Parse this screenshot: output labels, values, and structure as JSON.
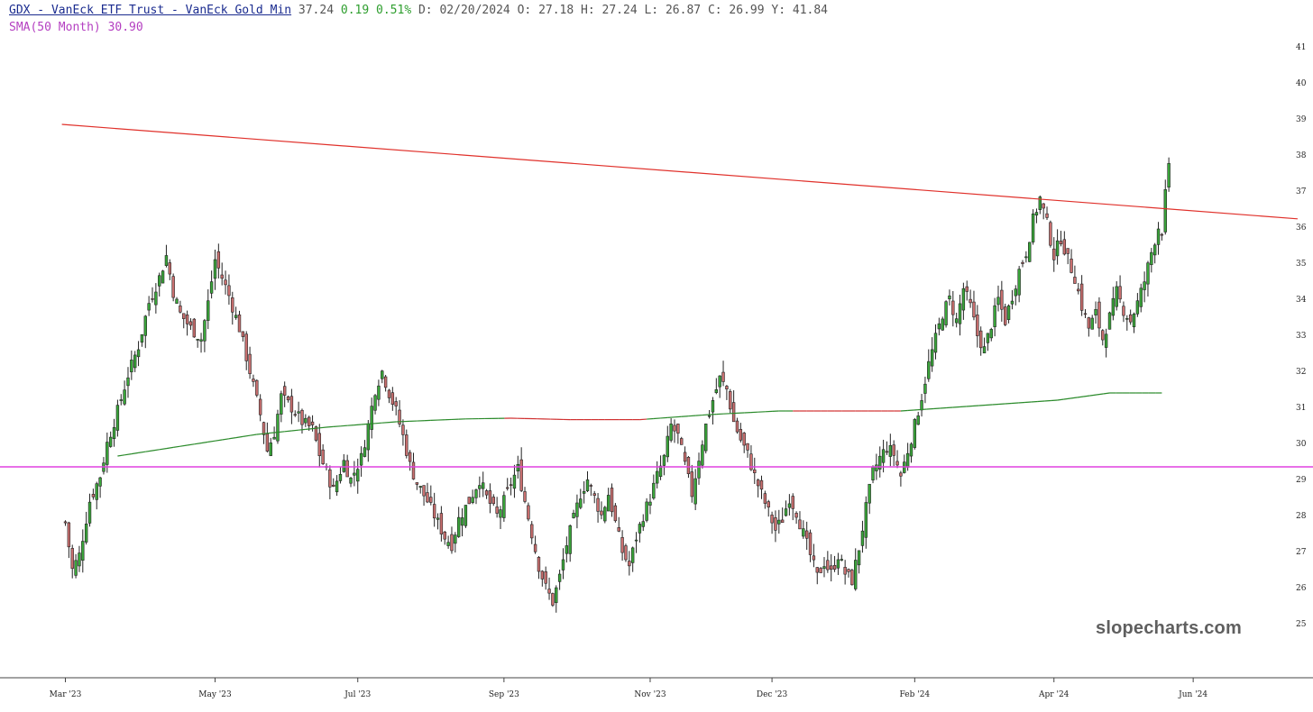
{
  "header": {
    "symbol_text": "GDX - VanEck ETF Trust - VanEck Gold Min",
    "last": "37.24",
    "change": "0.19",
    "change_pct": "0.51%",
    "date_label": "D:",
    "date": "02/20/2024",
    "open_label": "O:",
    "open": "27.18",
    "high_label": "H:",
    "high": "27.24",
    "low_label": "L:",
    "low": "26.87",
    "close_label": "C:",
    "close": "26.99",
    "y_label": "Y:",
    "y": "41.84"
  },
  "indicator": {
    "sma_label": "SMA(50 Month) 30.90"
  },
  "watermark": "slopecharts.com",
  "colors": {
    "up": "#3aa63a",
    "down": "#c96f6f",
    "trendline": "#e0302a",
    "sma_green": "#2a8a2a",
    "sma_red": "#d03030",
    "horizontal": "#e040e0",
    "symbol": "#1a2b8f",
    "change": "#2e9e2e",
    "sma_text": "#b43fc1"
  },
  "chart_data": {
    "type": "candlestick",
    "ylim": [
      24.3,
      41.3
    ],
    "y_ticks": [
      25,
      26,
      27,
      28,
      29,
      30,
      31,
      32,
      33,
      34,
      35,
      36,
      37,
      38,
      39,
      40,
      41
    ],
    "x_ticks": [
      {
        "label": "Mar '23",
        "index": 0
      },
      {
        "label": "May '23",
        "index": 43
      },
      {
        "label": "Jul '23",
        "index": 84
      },
      {
        "label": "Sep '23",
        "index": 126
      },
      {
        "label": "Nov '23",
        "index": 168
      },
      {
        "label": "Dec '23",
        "index": 203
      },
      {
        "label": "Feb '24",
        "index": 244
      },
      {
        "label": "Apr '24",
        "index": 284
      },
      {
        "label": "Jun '24",
        "index": 324
      }
    ],
    "close_path": [
      [
        0,
        27.8
      ],
      [
        2,
        26.5
      ],
      [
        4,
        26.9
      ],
      [
        7,
        28.4
      ],
      [
        10,
        29.1
      ],
      [
        12,
        30.0
      ],
      [
        15,
        30.9
      ],
      [
        18,
        31.9
      ],
      [
        21,
        32.7
      ],
      [
        24,
        33.9
      ],
      [
        27,
        34.6
      ],
      [
        29,
        35.2
      ],
      [
        31,
        34.2
      ],
      [
        33,
        33.6
      ],
      [
        36,
        33.2
      ],
      [
        39,
        32.9
      ],
      [
        41,
        33.9
      ],
      [
        43,
        35.1
      ],
      [
        45,
        34.6
      ],
      [
        47,
        34.1
      ],
      [
        50,
        33.2
      ],
      [
        52,
        32.4
      ],
      [
        54,
        31.6
      ],
      [
        56,
        30.8
      ],
      [
        58,
        29.8
      ],
      [
        60,
        30.3
      ],
      [
        62,
        31.3
      ],
      [
        65,
        31.0
      ],
      [
        68,
        30.6
      ],
      [
        71,
        30.4
      ],
      [
        73,
        29.7
      ],
      [
        75,
        29.2
      ],
      [
        77,
        28.7
      ],
      [
        80,
        29.5
      ],
      [
        82,
        29.0
      ],
      [
        85,
        29.6
      ],
      [
        87,
        30.5
      ],
      [
        89,
        31.5
      ],
      [
        91,
        32.0
      ],
      [
        93,
        31.4
      ],
      [
        95,
        30.9
      ],
      [
        97,
        30.2
      ],
      [
        99,
        29.4
      ],
      [
        101,
        28.9
      ],
      [
        104,
        28.4
      ],
      [
        106,
        28.0
      ],
      [
        109,
        27.4
      ],
      [
        111,
        27.2
      ],
      [
        113,
        27.9
      ],
      [
        116,
        28.4
      ],
      [
        119,
        29.0
      ],
      [
        121,
        28.5
      ],
      [
        124,
        28.0
      ],
      [
        126,
        28.4
      ],
      [
        128,
        28.9
      ],
      [
        130,
        29.3
      ],
      [
        132,
        28.4
      ],
      [
        134,
        27.5
      ],
      [
        136,
        26.6
      ],
      [
        138,
        26.0
      ],
      [
        140,
        25.6
      ],
      [
        142,
        26.3
      ],
      [
        144,
        27.2
      ],
      [
        146,
        27.9
      ],
      [
        148,
        28.6
      ],
      [
        150,
        29.0
      ],
      [
        152,
        28.5
      ],
      [
        154,
        28.0
      ],
      [
        156,
        28.6
      ],
      [
        158,
        27.8
      ],
      [
        160,
        27.0
      ],
      [
        162,
        26.6
      ],
      [
        164,
        27.4
      ],
      [
        166,
        28.0
      ],
      [
        168,
        28.5
      ],
      [
        170,
        29.1
      ],
      [
        172,
        29.6
      ],
      [
        174,
        30.5
      ],
      [
        176,
        30.2
      ],
      [
        178,
        29.4
      ],
      [
        180,
        28.6
      ],
      [
        182,
        29.6
      ],
      [
        184,
        30.5
      ],
      [
        186,
        31.2
      ],
      [
        188,
        31.8
      ],
      [
        190,
        31.5
      ],
      [
        192,
        30.6
      ],
      [
        194,
        30.1
      ],
      [
        196,
        29.7
      ],
      [
        198,
        29.1
      ],
      [
        200,
        28.6
      ],
      [
        202,
        28.1
      ],
      [
        204,
        27.6
      ],
      [
        206,
        27.9
      ],
      [
        208,
        28.5
      ],
      [
        210,
        28.1
      ],
      [
        212,
        27.5
      ],
      [
        214,
        26.9
      ],
      [
        216,
        26.3
      ],
      [
        218,
        26.7
      ],
      [
        220,
        26.4
      ],
      [
        222,
        26.9
      ],
      [
        224,
        26.4
      ],
      [
        226,
        26.2
      ],
      [
        228,
        27.1
      ],
      [
        230,
        28.2
      ],
      [
        232,
        29.2
      ],
      [
        234,
        29.6
      ],
      [
        236,
        29.9
      ],
      [
        238,
        29.7
      ],
      [
        240,
        29.1
      ],
      [
        242,
        29.8
      ],
      [
        244,
        30.5
      ],
      [
        246,
        31.3
      ],
      [
        248,
        32.2
      ],
      [
        250,
        32.9
      ],
      [
        252,
        33.6
      ],
      [
        254,
        34.0
      ],
      [
        256,
        33.4
      ],
      [
        258,
        34.3
      ],
      [
        260,
        33.8
      ],
      [
        262,
        33.0
      ],
      [
        264,
        32.6
      ],
      [
        266,
        33.3
      ],
      [
        268,
        34.0
      ],
      [
        270,
        33.4
      ],
      [
        272,
        34.1
      ],
      [
        274,
        34.8
      ],
      [
        276,
        35.3
      ],
      [
        278,
        36.2
      ],
      [
        280,
        36.8
      ],
      [
        282,
        36.1
      ],
      [
        284,
        35.2
      ],
      [
        286,
        35.7
      ],
      [
        288,
        35.1
      ],
      [
        290,
        34.6
      ],
      [
        292,
        33.8
      ],
      [
        294,
        33.2
      ],
      [
        296,
        33.6
      ],
      [
        298,
        32.9
      ],
      [
        300,
        33.5
      ],
      [
        302,
        34.2
      ],
      [
        304,
        33.7
      ],
      [
        306,
        33.4
      ],
      [
        308,
        33.9
      ],
      [
        310,
        34.5
      ],
      [
        312,
        35.3
      ],
      [
        314,
        36.0
      ],
      [
        315,
        35.9
      ],
      [
        316,
        36.9
      ],
      [
        317,
        37.6
      ]
    ],
    "trendline": {
      "start": [
        -1,
        38.85
      ],
      "end": [
        354,
        36.23
      ]
    },
    "sma_path": [
      [
        15,
        29.65
      ],
      [
        35,
        29.95
      ],
      [
        55,
        30.25
      ],
      [
        75,
        30.45
      ],
      [
        95,
        30.6
      ],
      [
        115,
        30.68
      ],
      [
        128,
        30.7
      ],
      [
        145,
        30.66
      ],
      [
        165,
        30.66
      ],
      [
        185,
        30.8
      ],
      [
        205,
        30.9
      ],
      [
        225,
        30.9
      ],
      [
        240,
        30.9
      ],
      [
        255,
        31.0
      ],
      [
        270,
        31.1
      ],
      [
        285,
        31.2
      ],
      [
        300,
        31.4
      ],
      [
        315,
        31.4
      ]
    ],
    "sma_red_segments": [
      [
        126,
        166
      ],
      [
        210,
        240
      ]
    ],
    "horizontal_line": 29.35
  }
}
